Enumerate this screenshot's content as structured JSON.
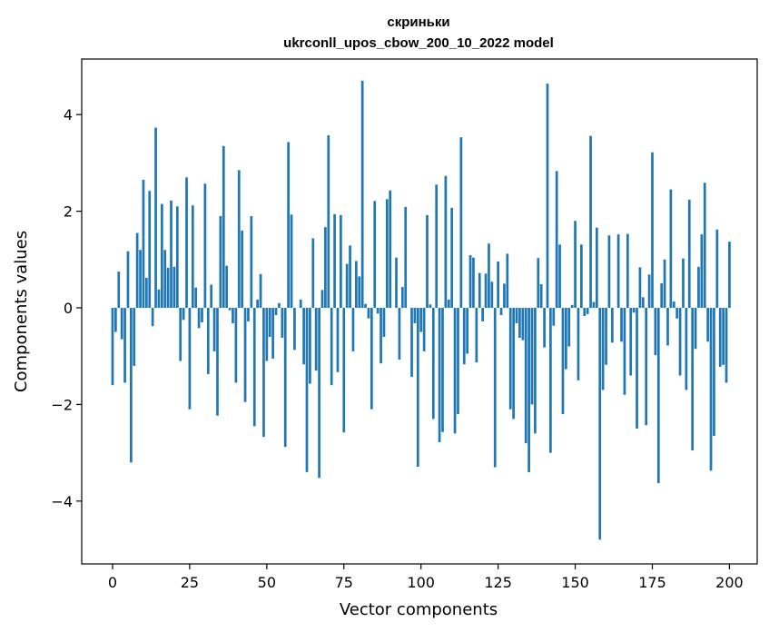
{
  "chart_data": {
    "type": "bar",
    "title": "скриньки",
    "subtitle": "ukrconll_upos_cbow_200_10_2022 model",
    "xlabel": "Vector components",
    "ylabel": "Components values",
    "xlim": [
      -10,
      209
    ],
    "ylim": [
      -5.3,
      5.15
    ],
    "xticks": [
      0,
      25,
      50,
      75,
      100,
      125,
      150,
      175,
      200
    ],
    "yticks": [
      -4,
      -2,
      0,
      2,
      4
    ],
    "xtick_labels": [
      "0",
      "25",
      "50",
      "75",
      "100",
      "125",
      "150",
      "175",
      "200"
    ],
    "ytick_labels": [
      "−4",
      "−2",
      "0",
      "2",
      "4"
    ],
    "bar_color": "#1f77b4",
    "grid": false,
    "values": [
      -1.6,
      -0.5,
      0.75,
      -0.65,
      -1.55,
      1.17,
      -3.2,
      -1.2,
      1.55,
      1.2,
      2.65,
      0.62,
      2.42,
      -0.38,
      3.73,
      0.38,
      2.15,
      1.2,
      0.83,
      2.22,
      0.85,
      2.1,
      -1.1,
      -0.25,
      2.7,
      -2.1,
      2.12,
      0.42,
      -0.42,
      -0.3,
      2.57,
      -1.37,
      0.48,
      -0.9,
      -2.23,
      1.9,
      3.35,
      0.87,
      -0.05,
      -0.32,
      -1.55,
      2.85,
      1.6,
      -1.95,
      -0.28,
      1.9,
      -2.45,
      0.17,
      0.7,
      -2.67,
      -1.1,
      -0.6,
      -1.05,
      -0.15,
      0.1,
      -0.62,
      -2.88,
      3.43,
      1.93,
      -0.87,
      0.0,
      0.17,
      -1.17,
      -3.4,
      -1.57,
      1.44,
      -1.3,
      -3.52,
      0.37,
      1.67,
      3.57,
      -1.6,
      1.94,
      -1.33,
      1.92,
      -2.58,
      0.91,
      1.29,
      -0.9,
      0.97,
      0.65,
      4.7,
      0.08,
      -0.22,
      -2.1,
      2.21,
      -0.12,
      -1.15,
      -0.6,
      2.25,
      2.43,
      0.0,
      1.04,
      -1.07,
      0.43,
      2.09,
      0.0,
      -1.43,
      -0.32,
      -3.29,
      -0.5,
      -0.9,
      1.92,
      0.07,
      -2.3,
      2.55,
      -2.78,
      -2.57,
      2.73,
      0.17,
      2.07,
      -2.6,
      -2.2,
      3.53,
      -1.17,
      -0.95,
      1.09,
      1.04,
      -1.13,
      0.72,
      -0.28,
      0.71,
      1.33,
      0.54,
      -3.3,
      0.96,
      -0.15,
      0.5,
      1.12,
      -2.1,
      -2.3,
      -0.32,
      -0.62,
      -0.67,
      -2.8,
      -3.4,
      -2.0,
      -2.6,
      1.03,
      0.49,
      -0.82,
      4.64,
      -3.0,
      -0.37,
      2.83,
      1.31,
      -2.2,
      -1.27,
      -0.8,
      0.06,
      1.8,
      -1.5,
      1.31,
      -0.17,
      -0.13,
      3.56,
      0.12,
      1.66,
      -4.8,
      -1.7,
      -1.18,
      1.5,
      -0.72,
      0.0,
      1.52,
      -0.7,
      -1.8,
      1.53,
      -1.4,
      -0.1,
      -2.5,
      0.84,
      0.22,
      -2.43,
      0.69,
      3.22,
      -0.98,
      -3.63,
      0.51,
      1.0,
      -0.78,
      2.45,
      0.13,
      -0.22,
      -1.4,
      1.02,
      -1.7,
      2.24,
      -2.95,
      -0.85,
      0.85,
      1.52,
      2.59,
      -0.7,
      -3.37,
      -2.65,
      1.62,
      -1.22,
      -1.18,
      -1.55,
      1.37
    ]
  }
}
